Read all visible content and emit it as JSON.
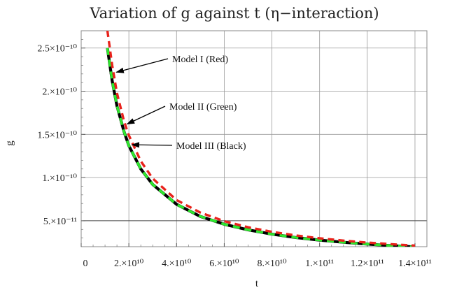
{
  "chart_data": {
    "type": "line",
    "title": "Variation of g against t (η−interaction)",
    "xlabel": "t",
    "ylabel": "g",
    "xlim": [
      0,
      145000000000
    ],
    "ylim": [
      2e-11,
      2.7e-10
    ],
    "grid": true,
    "x_ticks": [
      {
        "value": 0,
        "label": "0"
      },
      {
        "value": 20000000000,
        "label": "2.×10¹⁰"
      },
      {
        "value": 40000000000,
        "label": "4.×10¹⁰"
      },
      {
        "value": 60000000000,
        "label": "6.×10¹⁰"
      },
      {
        "value": 80000000000,
        "label": "8.×10¹⁰"
      },
      {
        "value": 100000000000,
        "label": "1.×10¹¹"
      },
      {
        "value": 120000000000,
        "label": "1.2×10¹¹"
      },
      {
        "value": 140000000000,
        "label": "1.4×10¹¹"
      }
    ],
    "y_ticks": [
      {
        "value": 5e-11,
        "label": "5.×10⁻¹¹"
      },
      {
        "value": 1e-10,
        "label": "1.×10⁻¹⁰"
      },
      {
        "value": 1.5e-10,
        "label": "1.5×10⁻¹⁰"
      },
      {
        "value": 2e-10,
        "label": "2.×10⁻¹⁰"
      },
      {
        "value": 2.5e-10,
        "label": "2.5×10⁻¹⁰"
      }
    ],
    "series": [
      {
        "name": "Model I (Red)",
        "color": "#e8221b",
        "dash": true,
        "x": [
          11000000000,
          13000000000,
          15000000000,
          18000000000,
          20000000000,
          25000000000,
          30000000000,
          40000000000,
          50000000000,
          60000000000,
          70000000000,
          80000000000,
          90000000000,
          100000000000,
          110000000000,
          120000000000,
          130000000000,
          140000000000
        ],
        "y": [
          2.7e-10,
          2.3e-10,
          1.98e-10,
          1.65e-10,
          1.49e-10,
          1.19e-10,
          9.9e-11,
          7.4e-11,
          5.95e-11,
          4.95e-11,
          4.25e-11,
          3.72e-11,
          3.3e-11,
          2.97e-11,
          2.7e-11,
          2.48e-11,
          2.29e-11,
          2.12e-11
        ]
      },
      {
        "name": "Model II (Green)",
        "color": "#2ee82e",
        "dash": true,
        "x": [
          11000000000,
          13000000000,
          15000000000,
          18000000000,
          20000000000,
          25000000000,
          30000000000,
          40000000000,
          50000000000,
          60000000000,
          70000000000,
          80000000000,
          90000000000,
          100000000000,
          110000000000,
          120000000000,
          130000000000,
          140000000000
        ],
        "y": [
          2.5e-10,
          2.12e-10,
          1.83e-10,
          1.53e-10,
          1.37e-10,
          1.1e-10,
          9.2e-11,
          6.9e-11,
          5.5e-11,
          4.6e-11,
          3.95e-11,
          3.45e-11,
          3.06e-11,
          2.76e-11,
          2.51e-11,
          2.3e-11,
          2.12e-11,
          1.97e-11
        ]
      },
      {
        "name": "Model III (Black)",
        "color": "#000000",
        "dash": false,
        "x": [
          11000000000,
          13000000000,
          15000000000,
          18000000000,
          20000000000,
          25000000000,
          30000000000,
          40000000000,
          50000000000,
          60000000000,
          70000000000,
          80000000000,
          90000000000,
          100000000000,
          110000000000,
          120000000000,
          130000000000,
          140000000000
        ],
        "y": [
          2.5e-10,
          2.12e-10,
          1.83e-10,
          1.53e-10,
          1.37e-10,
          1.1e-10,
          9.2e-11,
          6.9e-11,
          5.5e-11,
          4.6e-11,
          3.95e-11,
          3.45e-11,
          3.06e-11,
          2.76e-11,
          2.51e-11,
          2.3e-11,
          2.12e-11,
          1.97e-11
        ]
      }
    ],
    "annotations": [
      {
        "text": "Model I (Red)",
        "arrow_to": [
          13000000000,
          2.22e-10
        ]
      },
      {
        "text": "Model II (Green)",
        "arrow_to": [
          17500000000,
          1.62e-10
        ]
      },
      {
        "text": "Model III (Black)",
        "arrow_to": [
          19500000000,
          1.38e-10
        ]
      }
    ]
  }
}
